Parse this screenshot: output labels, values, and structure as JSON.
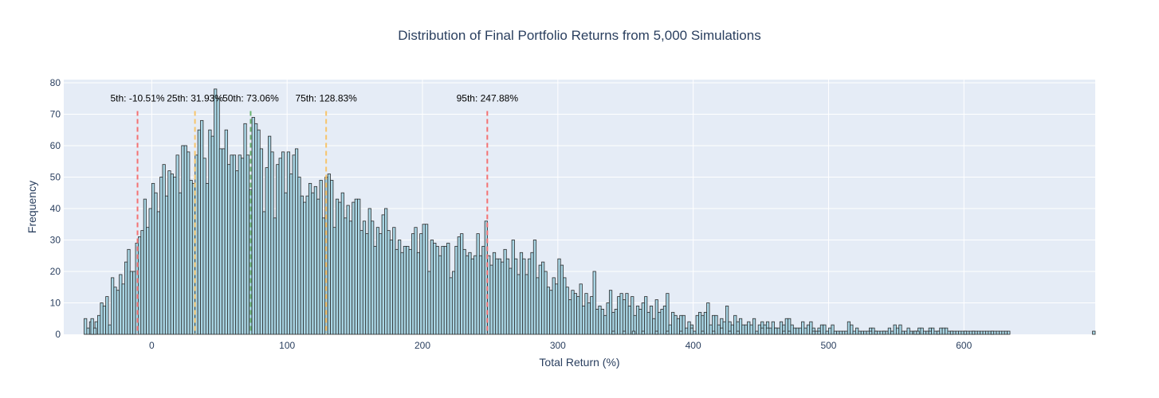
{
  "chart_data": {
    "type": "bar",
    "title": "Distribution of Final Portfolio Returns from 5,000 Simulations",
    "xlabel": "Total Return (%)",
    "ylabel": "Frequency",
    "xlim": [
      -65,
      697
    ],
    "ylim": [
      0,
      81
    ],
    "xticks": [
      0,
      100,
      200,
      300,
      400,
      500,
      600
    ],
    "yticks": [
      0,
      10,
      20,
      30,
      40,
      50,
      60,
      70,
      80
    ],
    "bin_start": -50,
    "bin_width": 2,
    "frequencies": [
      5,
      2,
      4,
      1,
      4,
      6,
      10,
      9,
      12,
      3,
      18,
      15,
      14,
      19,
      16,
      23,
      27,
      20,
      20,
      29,
      31,
      33,
      43,
      34,
      40,
      48,
      45,
      39,
      50,
      54,
      44,
      52,
      51,
      50,
      57,
      45,
      60,
      60,
      58,
      49,
      48,
      57,
      65,
      68,
      56,
      48,
      65,
      63,
      78,
      75,
      59,
      59,
      65,
      54,
      57,
      57,
      52,
      57,
      56,
      67,
      57,
      46,
      69,
      67,
      65,
      59,
      39,
      53,
      63,
      58,
      37,
      54,
      56,
      58,
      45,
      58,
      51,
      57,
      59,
      50,
      44,
      42,
      44,
      48,
      45,
      47,
      43,
      49,
      37,
      50,
      51,
      49,
      34,
      43,
      42,
      45,
      37,
      41,
      36,
      42,
      43,
      43,
      33,
      36,
      32,
      40,
      36,
      28,
      34,
      32,
      38,
      40,
      33,
      30,
      34,
      27,
      30,
      26,
      28,
      28,
      27,
      32,
      34,
      26,
      32,
      35,
      35,
      20,
      30,
      29,
      28,
      25,
      28,
      28,
      29,
      18,
      20,
      28,
      31,
      32,
      27,
      25,
      26,
      24,
      25,
      32,
      25,
      28,
      36,
      25,
      22,
      26,
      24,
      24,
      23,
      27,
      24,
      21,
      30,
      24,
      19,
      26,
      24,
      19,
      24,
      26,
      30,
      18,
      22,
      23,
      20,
      15,
      14,
      18,
      16,
      24,
      22,
      18,
      15,
      11,
      14,
      13,
      12,
      16,
      9,
      13,
      10,
      12,
      20,
      8,
      9,
      8,
      6,
      10,
      14,
      7,
      8,
      12,
      13,
      11,
      13,
      9,
      12,
      6,
      9,
      8,
      10,
      12,
      7,
      9,
      5,
      11,
      7,
      8,
      9,
      13,
      3,
      7,
      6,
      5,
      6,
      6,
      2,
      4,
      3,
      1,
      6,
      7,
      6,
      7,
      10,
      3,
      6,
      6,
      3,
      5,
      4,
      9,
      4,
      3,
      6,
      4,
      5,
      3,
      3,
      4,
      3,
      5,
      1,
      3,
      4,
      3,
      4,
      2,
      4,
      2,
      2,
      4,
      3,
      5,
      5,
      3,
      2,
      2,
      2,
      4,
      2,
      3,
      4,
      2,
      1,
      2,
      3,
      3,
      1,
      2,
      3,
      1,
      1,
      1,
      1,
      1,
      4,
      3,
      1,
      2,
      1,
      1,
      1,
      1,
      2,
      2,
      1,
      1,
      1,
      1,
      1,
      2,
      1,
      3,
      2,
      3,
      1,
      1,
      2,
      1,
      1,
      1,
      2,
      2,
      1,
      1,
      2,
      2,
      1,
      1,
      2,
      2,
      2,
      1,
      1,
      1,
      1,
      1,
      1,
      1,
      1,
      1,
      1,
      1,
      1,
      1,
      1,
      1,
      1,
      1,
      1,
      1,
      1,
      1,
      1
    ],
    "outlier_bins": [
      [
        -45,
        5
      ],
      [
        -43,
        2
      ],
      [
        340,
        1
      ],
      [
        348,
        1
      ],
      [
        355,
        1
      ],
      [
        362,
        1
      ],
      [
        372,
        1
      ],
      [
        380,
        1
      ],
      [
        390,
        1
      ],
      [
        398,
        2
      ],
      [
        406,
        1
      ],
      [
        414,
        1
      ],
      [
        420,
        2
      ],
      [
        426,
        1
      ],
      [
        432,
        1
      ],
      [
        450,
        2
      ],
      [
        454,
        2
      ],
      [
        460,
        2
      ],
      [
        466,
        1
      ],
      [
        470,
        1
      ],
      [
        488,
        1
      ],
      [
        492,
        1
      ],
      [
        530,
        1
      ],
      [
        534,
        1
      ],
      [
        540,
        1
      ],
      [
        563,
        1
      ],
      [
        565,
        1
      ],
      [
        574,
        1
      ],
      [
        580,
        1
      ],
      [
        590,
        1
      ],
      [
        600,
        1
      ],
      [
        606,
        1
      ],
      [
        620,
        1
      ],
      [
        632,
        1
      ],
      [
        695,
        1
      ]
    ],
    "percentiles": [
      {
        "label": "5th: -10.51%",
        "value": -10.51,
        "color": "#f47272"
      },
      {
        "label": "25th: 31.93%",
        "value": 31.93,
        "color": "#f7c46b"
      },
      {
        "label": "50th: 73.06%",
        "value": 73.06,
        "color": "#68b26f"
      },
      {
        "label": "75th: 128.83%",
        "value": 128.83,
        "color": "#f7c46b"
      },
      {
        "label": "95th: 247.88%",
        "value": 247.88,
        "color": "#f47272"
      }
    ],
    "colors": {
      "bar_fill": "#a9d6e5",
      "bar_edge": "#2b2b2b",
      "plot_bg": "#e5ecf6",
      "grid": "#ffffff"
    },
    "grid": true
  }
}
